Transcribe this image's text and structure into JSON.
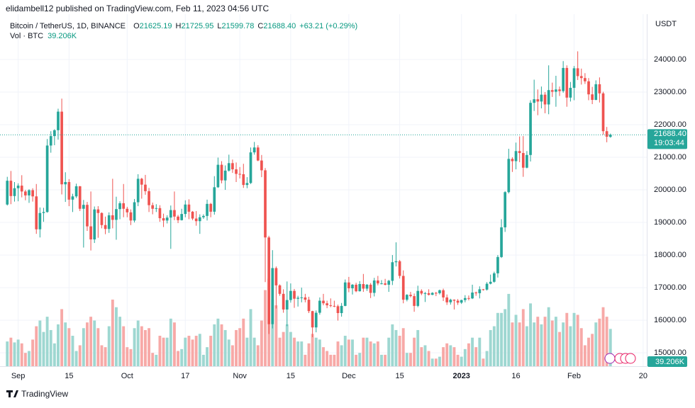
{
  "header": {
    "publisher": "elidambell12 published on TradingView.com, Feb 11, 2023 04:56 UTC",
    "footer": "TradingView"
  },
  "chart_data": {
    "type": "candlestick",
    "symbol": "Bitcoin / TetherUS, 1D, BINANCE",
    "ohlc_legend": [
      {
        "label": "O",
        "value": "21625.19"
      },
      {
        "label": "H",
        "value": "21725.95"
      },
      {
        "label": "L",
        "value": "21599.78"
      },
      {
        "label": "C",
        "value": "21688.40"
      }
    ],
    "change": "+63.21 (+0.29%)",
    "volume_title": "Vol · BTC",
    "volume_label": "39.206K",
    "axis_unit": "USDT",
    "last_price_label": "21688.40",
    "countdown": "19:03:44",
    "up_color": "#26a69a",
    "down_color": "#ef5350",
    "volume_up_color": "#9ed7d1",
    "volume_down_color": "#f7a9a7",
    "grid": true,
    "xlim": [
      "2022-08-27",
      "2023-02-21"
    ],
    "xticks": [
      {
        "value": "2022-09-01",
        "label": "Sep"
      },
      {
        "value": "2022-09-15",
        "label": "15"
      },
      {
        "value": "2022-10-01",
        "label": "Oct"
      },
      {
        "value": "2022-10-17",
        "label": "17"
      },
      {
        "value": "2022-11-01",
        "label": "Nov"
      },
      {
        "value": "2022-11-15",
        "label": "15"
      },
      {
        "value": "2022-12-01",
        "label": "Dec"
      },
      {
        "value": "2022-12-15",
        "label": "15"
      },
      {
        "value": "2023-01-01",
        "label": "2023"
      },
      {
        "value": "2023-01-16",
        "label": "16"
      },
      {
        "value": "2023-02-01",
        "label": "Feb"
      },
      {
        "value": "2023-02-20",
        "label": "20"
      }
    ],
    "ylim": [
      14590,
      25390
    ],
    "yticks": [
      {
        "value": 15000,
        "label": "15000.00"
      },
      {
        "value": 16000,
        "label": "16000.00"
      },
      {
        "value": 17000,
        "label": "17000.00"
      },
      {
        "value": 18000,
        "label": "18000.00"
      },
      {
        "value": 19000,
        "label": "19000.00"
      },
      {
        "value": 20000,
        "label": "20000.00"
      },
      {
        "value": 21000,
        "label": "21000.00"
      },
      {
        "value": 22000,
        "label": "22000.00"
      },
      {
        "value": 23000,
        "label": "23000.00"
      },
      {
        "value": 24000,
        "label": "24000.00"
      }
    ],
    "volume_ylim": [
      0,
      370000
    ],
    "x": [
      "2022-08-29",
      "2022-08-30",
      "2022-08-31",
      "2022-09-01",
      "2022-09-02",
      "2022-09-03",
      "2022-09-04",
      "2022-09-05",
      "2022-09-06",
      "2022-09-07",
      "2022-09-08",
      "2022-09-09",
      "2022-09-10",
      "2022-09-11",
      "2022-09-12",
      "2022-09-13",
      "2022-09-14",
      "2022-09-15",
      "2022-09-16",
      "2022-09-17",
      "2022-09-18",
      "2022-09-19",
      "2022-09-20",
      "2022-09-21",
      "2022-09-22",
      "2022-09-23",
      "2022-09-24",
      "2022-09-25",
      "2022-09-26",
      "2022-09-27",
      "2022-09-28",
      "2022-09-29",
      "2022-09-30",
      "2022-10-01",
      "2022-10-02",
      "2022-10-03",
      "2022-10-04",
      "2022-10-05",
      "2022-10-06",
      "2022-10-07",
      "2022-10-08",
      "2022-10-09",
      "2022-10-10",
      "2022-10-11",
      "2022-10-12",
      "2022-10-13",
      "2022-10-14",
      "2022-10-15",
      "2022-10-16",
      "2022-10-17",
      "2022-10-18",
      "2022-10-19",
      "2022-10-20",
      "2022-10-21",
      "2022-10-22",
      "2022-10-23",
      "2022-10-24",
      "2022-10-25",
      "2022-10-26",
      "2022-10-27",
      "2022-10-28",
      "2022-10-29",
      "2022-10-30",
      "2022-10-31",
      "2022-11-01",
      "2022-11-02",
      "2022-11-03",
      "2022-11-04",
      "2022-11-05",
      "2022-11-06",
      "2022-11-07",
      "2022-11-08",
      "2022-11-09",
      "2022-11-10",
      "2022-11-11",
      "2022-11-12",
      "2022-11-13",
      "2022-11-14",
      "2022-11-15",
      "2022-11-16",
      "2022-11-17",
      "2022-11-18",
      "2022-11-19",
      "2022-11-20",
      "2022-11-21",
      "2022-11-22",
      "2022-11-23",
      "2022-11-24",
      "2022-11-25",
      "2022-11-26",
      "2022-11-27",
      "2022-11-28",
      "2022-11-29",
      "2022-11-30",
      "2022-12-01",
      "2022-12-02",
      "2022-12-03",
      "2022-12-04",
      "2022-12-05",
      "2022-12-06",
      "2022-12-07",
      "2022-12-08",
      "2022-12-09",
      "2022-12-10",
      "2022-12-11",
      "2022-12-12",
      "2022-12-13",
      "2022-12-14",
      "2022-12-15",
      "2022-12-16",
      "2022-12-17",
      "2022-12-18",
      "2022-12-19",
      "2022-12-20",
      "2022-12-21",
      "2022-12-22",
      "2022-12-23",
      "2022-12-24",
      "2022-12-25",
      "2022-12-26",
      "2022-12-27",
      "2022-12-28",
      "2022-12-29",
      "2022-12-30",
      "2022-12-31",
      "2023-01-01",
      "2023-01-02",
      "2023-01-03",
      "2023-01-04",
      "2023-01-05",
      "2023-01-06",
      "2023-01-07",
      "2023-01-08",
      "2023-01-09",
      "2023-01-10",
      "2023-01-11",
      "2023-01-12",
      "2023-01-13",
      "2023-01-14",
      "2023-01-15",
      "2023-01-16",
      "2023-01-17",
      "2023-01-18",
      "2023-01-19",
      "2023-01-20",
      "2023-01-21",
      "2023-01-22",
      "2023-01-23",
      "2023-01-24",
      "2023-01-25",
      "2023-01-26",
      "2023-01-27",
      "2023-01-28",
      "2023-01-29",
      "2023-01-30",
      "2023-01-31",
      "2023-02-01",
      "2023-02-02",
      "2023-02-03",
      "2023-02-04",
      "2023-02-05",
      "2023-02-06",
      "2023-02-07",
      "2023-02-08",
      "2023-02-09",
      "2023-02-10",
      "2023-02-11"
    ],
    "open": [
      19550,
      20280,
      19810,
      20050,
      20130,
      19950,
      19830,
      19990,
      19800,
      18790,
      19290,
      19320,
      21360,
      21650,
      21830,
      22400,
      20170,
      20240,
      19700,
      19800,
      20110,
      19420,
      19540,
      18880,
      18480,
      19400,
      19290,
      18920,
      18800,
      19220,
      19080,
      19410,
      19590,
      19420,
      19310,
      19060,
      19620,
      20340,
      20160,
      19960,
      19530,
      19420,
      19440,
      19130,
      19060,
      19150,
      19380,
      19180,
      19070,
      19260,
      19550,
      19330,
      19120,
      19040,
      19160,
      19200,
      19570,
      19330,
      20080,
      20770,
      20290,
      20590,
      20820,
      20630,
      20490,
      20480,
      20150,
      20210,
      21150,
      21300,
      20900,
      20600,
      18540,
      15880,
      17600,
      17070,
      16810,
      16330,
      16620,
      16900,
      16660,
      16690,
      16700,
      16630,
      16280,
      15780,
      16230,
      16600,
      16520,
      16460,
      16440,
      16430,
      16220,
      16440,
      17160,
      16980,
      17090,
      16890,
      17110,
      16970,
      17090,
      16840,
      17220,
      17130,
      17130,
      17090,
      17210,
      17780,
      17810,
      17360,
      16630,
      16780,
      16740,
      16440,
      16900,
      16820,
      16830,
      16780,
      16840,
      16830,
      16920,
      16700,
      16550,
      16630,
      16600,
      16540,
      16620,
      16680,
      16670,
      16850,
      16830,
      16950,
      16940,
      17120,
      17180,
      17440,
      17940,
      18850,
      19930,
      20950,
      20880,
      21190,
      21130,
      20680,
      21070,
      22670,
      22780,
      22710,
      22920,
      22620,
      23060,
      23010,
      23080,
      23030,
      23740,
      22830,
      23130,
      23730,
      23490,
      23430,
      23330,
      22930,
      22760,
      23240,
      22960,
      21800,
      21625.19
    ],
    "high": [
      20400,
      20580,
      20240,
      20200,
      20450,
      20000,
      20020,
      20050,
      20180,
      19460,
      19450,
      21560,
      21800,
      21860,
      22490,
      22800,
      20540,
      20330,
      19880,
      20190,
      20120,
      19690,
      19630,
      19950,
      19490,
      19500,
      19310,
      19180,
      19310,
      20340,
      19790,
      19650,
      20180,
      19480,
      19400,
      19720,
      20480,
      20370,
      20460,
      20060,
      19610,
      19560,
      19530,
      19270,
      19220,
      19520,
      19950,
      19230,
      19420,
      19680,
      19710,
      19350,
      19350,
      19250,
      19250,
      19700,
      19600,
      20420,
      20990,
      20880,
      20750,
      21080,
      20930,
      20840,
      20700,
      20800,
      20390,
      21300,
      21470,
      21370,
      21070,
      20670,
      18590,
      18150,
      17650,
      17100,
      16950,
      17190,
      17130,
      16960,
      16750,
      17000,
      16810,
      16720,
      16290,
      16300,
      16700,
      16810,
      16600,
      16670,
      16600,
      16480,
      16530,
      17250,
      17330,
      17110,
      17150,
      17200,
      17420,
      17110,
      17140,
      17300,
      17360,
      17230,
      17270,
      17240,
      18000,
      18390,
      17850,
      17530,
      16800,
      16870,
      16820,
      17060,
      16950,
      16870,
      16950,
      16860,
      16870,
      16940,
      16970,
      16790,
      16660,
      16640,
      16650,
      16630,
      16770,
      16760,
      17090,
      16880,
      17040,
      16960,
      17170,
      17400,
      17490,
      18000,
      19100,
      19960,
      21260,
      21000,
      21450,
      21640,
      21650,
      21190,
      22750,
      23380,
      23080,
      23170,
      23000,
      23820,
      23290,
      23500,
      23170,
      23950,
      23820,
      23310,
      23800,
      24250,
      23720,
      23580,
      23430,
      23160,
      23360,
      23450,
      23010,
      21930,
      21725.95
    ],
    "low": [
      19520,
      19560,
      19640,
      19650,
      19770,
      19680,
      19600,
      19640,
      18650,
      18540,
      19020,
      19300,
      21140,
      21370,
      21540,
      19860,
      19630,
      19500,
      19320,
      19750,
      19350,
      18230,
      18740,
      18140,
      18370,
      18530,
      18820,
      18640,
      18680,
      18820,
      18470,
      19100,
      19160,
      19160,
      18920,
      19000,
      19500,
      19730,
      19850,
      19320,
      19250,
      19320,
      19020,
      18860,
      18970,
      18190,
      19070,
      18980,
      19060,
      19160,
      19100,
      19070,
      18900,
      18650,
      19110,
      19060,
      19160,
      19240,
      20060,
      20200,
      20000,
      20560,
      20520,
      20240,
      20350,
      20060,
      20050,
      20180,
      21080,
      20880,
      20390,
      17170,
      15580,
      15750,
      16360,
      16750,
      16230,
      15820,
      16540,
      16380,
      16420,
      16550,
      16550,
      16220,
      15480,
      15630,
      16170,
      16460,
      16370,
      16400,
      16400,
      15990,
      16110,
      16430,
      16860,
      16790,
      16860,
      16880,
      16870,
      16900,
      16680,
      16730,
      17070,
      17100,
      17070,
      16870,
      17080,
      17650,
      17280,
      16520,
      16580,
      16700,
      16260,
      16400,
      16770,
      16560,
      16760,
      16770,
      16740,
      16790,
      16590,
      16470,
      16480,
      16330,
      16470,
      16500,
      16550,
      16610,
      16650,
      16750,
      16670,
      16910,
      16910,
      17100,
      17150,
      17310,
      17910,
      18710,
      19890,
      20550,
      20630,
      20850,
      20400,
      20660,
      20870,
      22420,
      22290,
      22500,
      22350,
      22320,
      22850,
      22550,
      22880,
      22980,
      22550,
      22710,
      22750,
      23370,
      23230,
      23250,
      22750,
      22630,
      22750,
      22680,
      21690,
      21460,
      21599.78
    ],
    "close": [
      20280,
      19810,
      20050,
      20130,
      19950,
      19830,
      19990,
      19800,
      18790,
      19290,
      19320,
      21360,
      21650,
      21830,
      22400,
      20170,
      20240,
      19700,
      19800,
      20110,
      19420,
      19540,
      18880,
      18480,
      19400,
      19290,
      18920,
      18800,
      19220,
      19080,
      19410,
      19590,
      19420,
      19310,
      19060,
      19620,
      20340,
      20160,
      19960,
      19530,
      19420,
      19440,
      19130,
      19060,
      19150,
      19380,
      19180,
      19070,
      19260,
      19550,
      19330,
      19120,
      19040,
      19160,
      19200,
      19570,
      19330,
      20080,
      20770,
      20290,
      20590,
      20820,
      20630,
      20490,
      20480,
      20150,
      20210,
      21150,
      21300,
      20900,
      20600,
      18540,
      15880,
      17600,
      17070,
      16810,
      16330,
      16620,
      16900,
      16660,
      16690,
      16700,
      16630,
      16280,
      15780,
      16230,
      16600,
      16520,
      16460,
      16440,
      16430,
      16220,
      16440,
      17160,
      16980,
      17090,
      16890,
      17110,
      16970,
      17090,
      16840,
      17220,
      17130,
      17130,
      17090,
      17210,
      17780,
      17810,
      17360,
      16630,
      16780,
      16740,
      16440,
      16900,
      16820,
      16830,
      16780,
      16840,
      16830,
      16920,
      16700,
      16550,
      16630,
      16600,
      16540,
      16620,
      16680,
      16670,
      16850,
      16830,
      16950,
      16940,
      17120,
      17180,
      17440,
      17940,
      18850,
      19930,
      20950,
      20880,
      21190,
      21130,
      20680,
      21070,
      22670,
      22780,
      22710,
      22920,
      22620,
      23060,
      23010,
      23080,
      23030,
      23740,
      22830,
      23130,
      23730,
      23490,
      23430,
      23330,
      22930,
      22760,
      23240,
      22960,
      21800,
      21630,
      21688.4
    ],
    "volume": [
      26000,
      30000,
      25000,
      28000,
      24000,
      14000,
      16000,
      28000,
      42000,
      48000,
      36000,
      52000,
      38000,
      24000,
      44000,
      60000,
      46000,
      40000,
      32000,
      16000,
      22000,
      40000,
      46000,
      52000,
      48000,
      40000,
      22000,
      20000,
      42000,
      70000,
      62000,
      52000,
      42000,
      20000,
      18000,
      40000,
      48000,
      42000,
      38000,
      40000,
      14000,
      12000,
      32000,
      30000,
      30000,
      50000,
      46000,
      16000,
      18000,
      30000,
      32000,
      28000,
      32000,
      34000,
      12000,
      20000,
      32000,
      44000,
      50000,
      44000,
      38000,
      28000,
      22000,
      38000,
      40000,
      50000,
      30000,
      60000,
      30000,
      22000,
      48000,
      80000,
      92000,
      70000,
      64000,
      30000,
      36000,
      44000,
      36000,
      30000,
      26000,
      26000,
      12000,
      24000,
      34000,
      30000,
      28000,
      20000,
      16000,
      12000,
      12000,
      26000,
      22000,
      32000,
      28000,
      28000,
      12000,
      14000,
      30000,
      30000,
      26000,
      24000,
      26000,
      12000,
      12000,
      30000,
      44000,
      38000,
      32000,
      40000,
      14000,
      14000,
      30000,
      38000,
      20000,
      22000,
      16000,
      8000,
      8000,
      10000,
      20000,
      24000,
      22000,
      20000,
      12000,
      10000,
      18000,
      24000,
      30000,
      20000,
      30000,
      8000,
      16000,
      38000,
      42000,
      56000,
      56000,
      60000,
      76000,
      46000,
      54000,
      46000,
      60000,
      42000,
      66000,
      46000,
      52000,
      44000,
      52000,
      62000,
      48000,
      52000,
      36000,
      46000,
      56000,
      42000,
      56000,
      54000,
      40000,
      22000,
      30000,
      34000,
      46000,
      50000,
      62000,
      52000,
      39206
    ]
  }
}
